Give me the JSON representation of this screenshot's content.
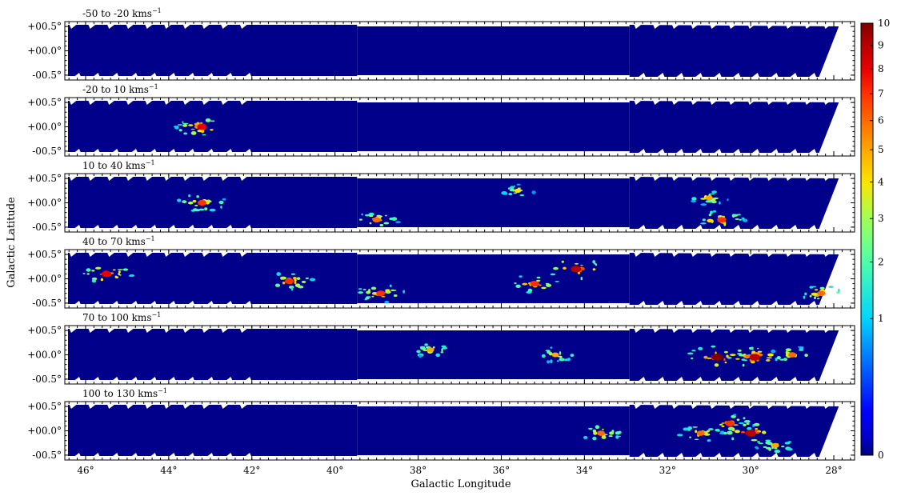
{
  "chart_data": {
    "type": "heatmap",
    "xlabel": "Galactic Longitude",
    "ylabel": "Galactic Latitude",
    "x_ticks": [
      "46°",
      "44°",
      "42°",
      "40°",
      "38°",
      "36°",
      "34°",
      "32°",
      "30°",
      "28°"
    ],
    "y_ticks": [
      "+00.5°",
      "+00.0°",
      "-00.5°"
    ],
    "xlim": [
      46.5,
      27.5
    ],
    "ylim": [
      -0.6,
      0.6
    ],
    "colorbar": {
      "ticks": [
        "0",
        "1",
        "2",
        "3",
        "4",
        "5",
        "6",
        "7",
        "8",
        "9",
        "10"
      ],
      "range": [
        0,
        10
      ],
      "scale": "sqrt",
      "colormap": "jet"
    },
    "panels": [
      {
        "title": "-50 to -20 kms",
        "title_sup": "−1"
      },
      {
        "title": "-20 to 10 kms",
        "title_sup": "−1"
      },
      {
        "title": "10 to 40 kms",
        "title_sup": "−1"
      },
      {
        "title": "40 to 70 kms",
        "title_sup": "−1"
      },
      {
        "title": "70 to 100 kms",
        "title_sup": "−1"
      },
      {
        "title": "100 to 130 kms",
        "title_sup": "−1"
      }
    ],
    "emission_regions": [
      [],
      [
        {
          "l": 43.2,
          "b": 0.0,
          "peak": 8
        }
      ],
      [
        {
          "l": 43.2,
          "b": 0.0,
          "peak": 7
        },
        {
          "l": 39.0,
          "b": -0.35,
          "peak": 6
        },
        {
          "l": 35.6,
          "b": 0.25,
          "peak": 4
        },
        {
          "l": 31.0,
          "b": 0.1,
          "peak": 5
        },
        {
          "l": 30.7,
          "b": -0.35,
          "peak": 7
        }
      ],
      [
        {
          "l": 45.5,
          "b": 0.1,
          "peak": 8
        },
        {
          "l": 41.1,
          "b": -0.05,
          "peak": 7
        },
        {
          "l": 38.9,
          "b": -0.3,
          "peak": 7
        },
        {
          "l": 35.2,
          "b": -0.1,
          "peak": 7
        },
        {
          "l": 34.2,
          "b": 0.2,
          "peak": 9
        },
        {
          "l": 28.3,
          "b": -0.3,
          "peak": 6
        }
      ],
      [
        {
          "l": 37.7,
          "b": 0.1,
          "peak": 5
        },
        {
          "l": 34.7,
          "b": 0.0,
          "peak": 5
        },
        {
          "l": 30.8,
          "b": -0.05,
          "peak": 10
        },
        {
          "l": 29.9,
          "b": -0.05,
          "peak": 9
        },
        {
          "l": 29.0,
          "b": 0.0,
          "peak": 6
        }
      ],
      [
        {
          "l": 33.6,
          "b": -0.05,
          "peak": 6
        },
        {
          "l": 31.2,
          "b": -0.05,
          "peak": 6
        },
        {
          "l": 30.5,
          "b": 0.15,
          "peak": 7
        },
        {
          "l": 30.0,
          "b": -0.05,
          "peak": 9
        },
        {
          "l": 29.4,
          "b": -0.3,
          "peak": 5
        }
      ]
    ],
    "grid": false,
    "legend": "none"
  }
}
